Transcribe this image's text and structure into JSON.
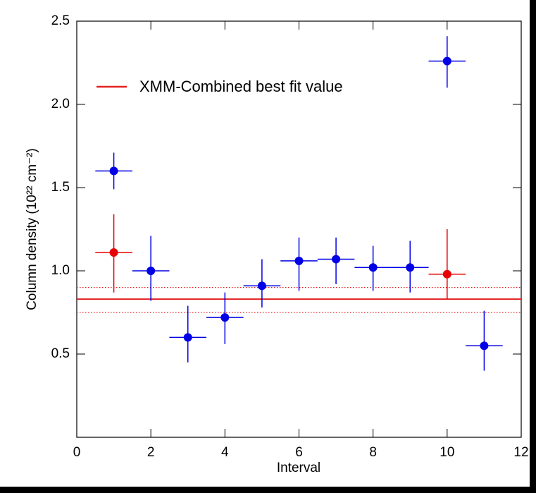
{
  "chart_data": {
    "type": "errorbar",
    "xlabel": "Interval",
    "ylabel": "Column density (10²² cm⁻²)",
    "xlim": [
      0,
      12
    ],
    "xticks": [
      0,
      2,
      4,
      6,
      8,
      10,
      12
    ],
    "ylim": [
      0,
      2.5
    ],
    "yticks": [
      0.5,
      {
        "value": 1,
        "label": "1.0"
      },
      1.5,
      {
        "value": 2,
        "label": "2.0"
      },
      2.5
    ],
    "series": [
      {
        "color": "#0000e6",
        "x": [
          1,
          2,
          3,
          4,
          5,
          6,
          7,
          8,
          9,
          10,
          11
        ],
        "values": [
          1.6,
          1.0,
          0.6,
          0.72,
          0.91,
          1.06,
          1.07,
          1.02,
          1.02,
          2.26,
          0.55
        ],
        "yerr_low": [
          0.11,
          0.18,
          0.15,
          0.16,
          0.13,
          0.18,
          0.15,
          0.14,
          0.15,
          0.16,
          0.15
        ],
        "yerr_high": [
          0.11,
          0.21,
          0.19,
          0.15,
          0.16,
          0.14,
          0.13,
          0.13,
          0.16,
          0.15,
          0.21
        ],
        "xerr": [
          0.5,
          0.5,
          0.5,
          0.5,
          0.5,
          0.5,
          0.5,
          0.5,
          0.5,
          0.5,
          0.5
        ]
      },
      {
        "color": "#e60000",
        "x": [
          1,
          10
        ],
        "values": [
          1.11,
          0.98
        ],
        "yerr_low": [
          0.24,
          0.15
        ],
        "yerr_high": [
          0.23,
          0.27
        ],
        "xerr": [
          0.5,
          0.5
        ]
      }
    ],
    "reference_lines": {
      "color": "#e62020",
      "label": "XMM-Combined best fit value",
      "values": [
        0.83,
        0.9,
        0.75
      ],
      "styles": [
        "solid",
        "dotted",
        "dotted"
      ]
    }
  }
}
